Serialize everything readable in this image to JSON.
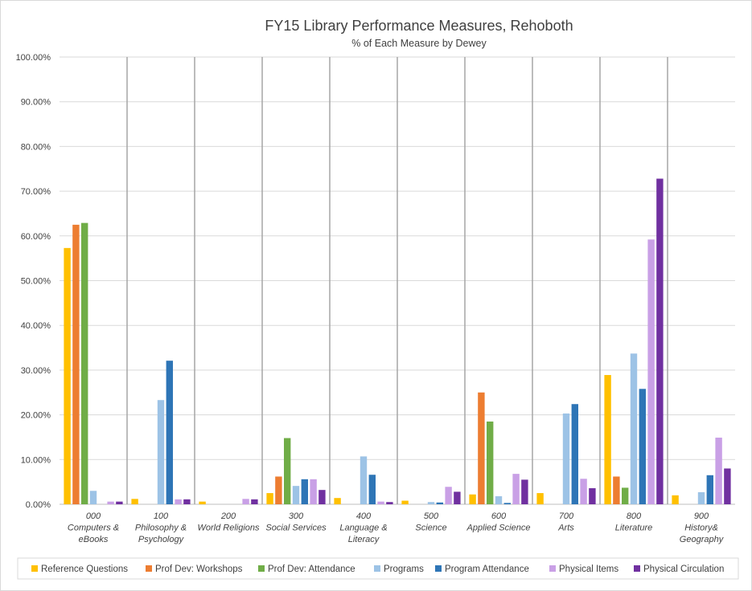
{
  "chart_data": {
    "type": "bar",
    "title": "FY15 Library Performance Measures, Rehoboth",
    "subtitle": "% of Each Measure by Dewey",
    "xlabel": "",
    "ylabel": "",
    "ylim": [
      0,
      100
    ],
    "y_ticks": [
      "0.00%",
      "10.00%",
      "20.00%",
      "30.00%",
      "40.00%",
      "50.00%",
      "60.00%",
      "70.00%",
      "80.00%",
      "90.00%",
      "100.00%"
    ],
    "grid": true,
    "legend_position": "bottom",
    "categories": [
      [
        "000",
        "Computers &",
        "eBooks"
      ],
      [
        "100",
        "Philosophy &",
        "Psychology"
      ],
      [
        "200",
        "World Religions"
      ],
      [
        "300",
        "Social Services"
      ],
      [
        "400",
        "Language &",
        "Literacy"
      ],
      [
        "500",
        "Science"
      ],
      [
        "600",
        "Applied Science"
      ],
      [
        "700",
        "Arts"
      ],
      [
        "800",
        "Literature"
      ],
      [
        "900",
        "History&",
        "Geography"
      ]
    ],
    "series": [
      {
        "name": "Reference Questions",
        "color": "#ffc000",
        "values": [
          57.3,
          1.2,
          0.6,
          2.5,
          1.4,
          0.8,
          2.2,
          2.5,
          28.9,
          2.0
        ]
      },
      {
        "name": "Prof Dev: Workshops",
        "color": "#ed7d31",
        "values": [
          62.5,
          0,
          0,
          6.2,
          0,
          0,
          25.0,
          0,
          6.2,
          0
        ]
      },
      {
        "name": "Prof Dev: Attendance",
        "color": "#70ad47",
        "values": [
          62.9,
          0,
          0,
          14.8,
          0,
          0,
          18.5,
          0,
          3.7,
          0
        ]
      },
      {
        "name": "Programs",
        "color": "#9dc3e6",
        "values": [
          3.0,
          23.3,
          0,
          4.1,
          10.7,
          0.5,
          1.8,
          20.3,
          33.7,
          2.7
        ]
      },
      {
        "name": "Program Attendance",
        "color": "#2e75b6",
        "values": [
          0,
          32.1,
          0,
          5.6,
          6.6,
          0.4,
          0.3,
          22.4,
          25.8,
          6.5
        ]
      },
      {
        "name": "Physical Items",
        "color": "#c9a0e6",
        "values": [
          0.6,
          1.1,
          1.2,
          5.6,
          0.6,
          3.9,
          6.8,
          5.7,
          59.2,
          14.9
        ]
      },
      {
        "name": "Physical Circulation",
        "color": "#7030a0",
        "values": [
          0.6,
          1.1,
          1.1,
          3.2,
          0.5,
          2.8,
          5.5,
          3.6,
          72.8,
          8.0
        ]
      }
    ]
  }
}
